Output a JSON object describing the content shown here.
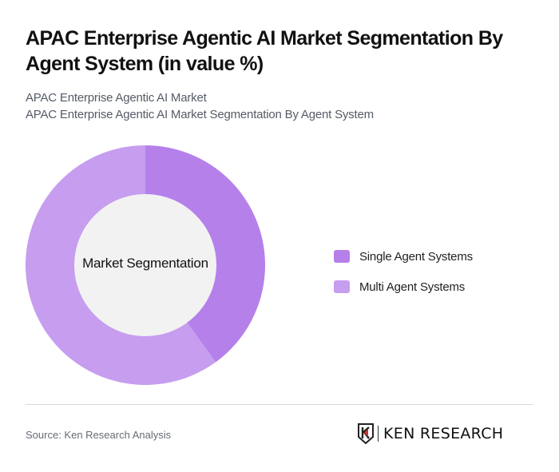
{
  "header": {
    "title": "APAC Enterprise Agentic AI Market Segmentation By Agent System (in value %)",
    "subtitle_1": "APAC Enterprise Agentic AI Market",
    "subtitle_2": "APAC Enterprise Agentic AI Market Segmentation By Agent System"
  },
  "chart": {
    "center_label": "Market Segmentation"
  },
  "legend": {
    "items": [
      {
        "label": "Single Agent Systems",
        "color": "#b580ea"
      },
      {
        "label": "Multi Agent Systems",
        "color": "#c69def"
      }
    ]
  },
  "footer": {
    "source": "Source: Ken Research Analysis",
    "logo_text": "KEN RESEARCH"
  },
  "chart_data": {
    "type": "pie",
    "subtype": "donut",
    "title": "APAC Enterprise Agentic AI Market Segmentation By Agent System (in value %)",
    "center_label": "Market Segmentation",
    "categories": [
      "Single Agent Systems",
      "Multi Agent Systems"
    ],
    "values": [
      40,
      60
    ],
    "colors": [
      "#b580ea",
      "#c69def"
    ],
    "legend_position": "right",
    "start_angle": "12 o'clock, clockwise"
  }
}
